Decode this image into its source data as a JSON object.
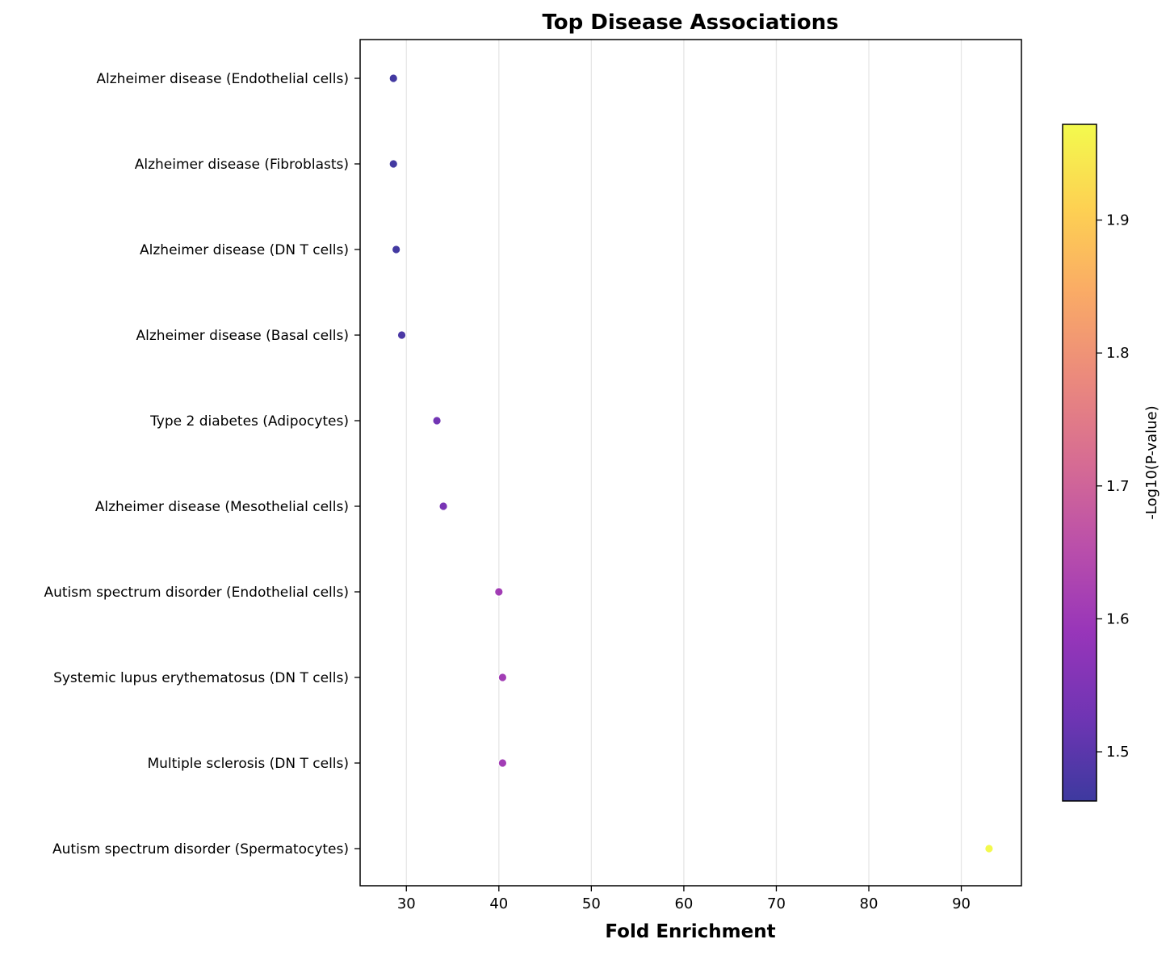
{
  "chart_data": {
    "type": "scatter",
    "title": "Top Disease Associations",
    "xlabel": "Fold Enrichment",
    "ylabel": "",
    "xlim": [
      25,
      96.5
    ],
    "x_ticks": [
      30,
      40,
      50,
      60,
      70,
      80,
      90
    ],
    "x_grid": true,
    "y_grid": false,
    "categories": [
      "Alzheimer disease (Endothelial cells)",
      "Alzheimer disease (Fibroblasts)",
      "Alzheimer disease (DN T cells)",
      "Alzheimer disease (Basal cells)",
      "Type 2 diabetes (Adipocytes)",
      "Alzheimer disease (Mesothelial cells)",
      "Autism spectrum disorder (Endothelial cells)",
      "Systemic lupus erythematosus (DN T cells)",
      "Multiple sclerosis (DN T cells)",
      "Autism spectrum disorder (Spermatocytes)"
    ],
    "points": [
      {
        "category": "Alzheimer disease (Endothelial cells)",
        "x": 28.6,
        "color_value": 1.47
      },
      {
        "category": "Alzheimer disease (Fibroblasts)",
        "x": 28.6,
        "color_value": 1.47
      },
      {
        "category": "Alzheimer disease (DN T cells)",
        "x": 28.9,
        "color_value": 1.47
      },
      {
        "category": "Alzheimer disease (Basal cells)",
        "x": 29.5,
        "color_value": 1.48
      },
      {
        "category": "Type 2 diabetes (Adipocytes)",
        "x": 33.3,
        "color_value": 1.53
      },
      {
        "category": "Alzheimer disease (Mesothelial cells)",
        "x": 34.0,
        "color_value": 1.54
      },
      {
        "category": "Autism spectrum disorder (Endothelial cells)",
        "x": 40.0,
        "color_value": 1.61
      },
      {
        "category": "Systemic lupus erythematosus (DN T cells)",
        "x": 40.4,
        "color_value": 1.61
      },
      {
        "category": "Multiple sclerosis (DN T cells)",
        "x": 40.4,
        "color_value": 1.61
      },
      {
        "category": "Autism spectrum disorder (Spermatocytes)",
        "x": 93.0,
        "color_value": 1.97
      }
    ],
    "colorbar": {
      "label": "-Log10(P-value)",
      "range": [
        1.463,
        1.972
      ],
      "ticks": [
        1.5,
        1.6,
        1.7,
        1.8,
        1.9
      ],
      "colormap": "plasma",
      "alpha": 0.8
    }
  }
}
